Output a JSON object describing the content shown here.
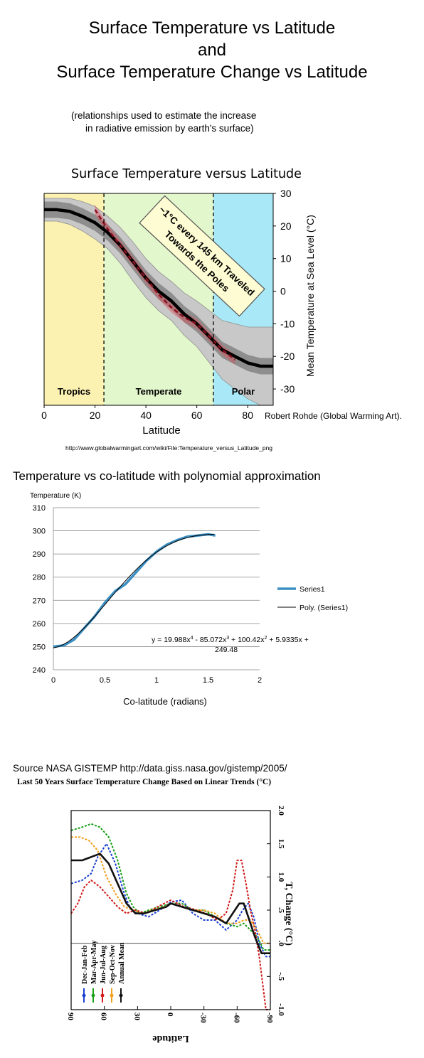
{
  "header": {
    "title_line1": "Surface Temperature vs Latitude",
    "title_line2": "and",
    "title_line3": "Surface Temperature Change vs Latitude",
    "note_line1": "(relationships used to estimate the increase",
    "note_line2": "in radiative emission by earth's surface)"
  },
  "chart_data": [
    {
      "type": "line",
      "title": "Surface Temperature versus Latitude",
      "xlabel": "Latitude",
      "ylabel": "Mean Temperature at Sea Level (°C)",
      "xlim": [
        0,
        90
      ],
      "ylim": [
        -35,
        30
      ],
      "x_ticks": [
        "0",
        "20",
        "40",
        "60",
        "80"
      ],
      "y_ticks": [
        "30",
        "20",
        "10",
        "0",
        "-10",
        "-20",
        "-30"
      ],
      "zones": [
        {
          "label": "Tropics",
          "from": 0,
          "to": 23.5,
          "color": "#fbf1b0"
        },
        {
          "label": "Temperate",
          "from": 23.5,
          "to": 66.5,
          "color": "#e3f7cc"
        },
        {
          "label": "Polar",
          "from": 66.5,
          "to": 90,
          "color": "#a9e8f7"
        }
      ],
      "annotation": {
        "line1": "~1°C every 145 km Traveled",
        "line2": "Towards the Poles"
      },
      "credit": "Robert Rohde (Global Warming Art).",
      "url": "http://www.globalwarmingart.com/wiki/File:Temperature_versus_Latitude_png",
      "series": [
        {
          "values_x": [
            0,
            5,
            10,
            15,
            20,
            25,
            30,
            35,
            40,
            45,
            50,
            55,
            60,
            65,
            70,
            75,
            80,
            85,
            90
          ],
          "values_y": [
            25,
            25,
            24.5,
            23,
            21,
            18,
            14,
            9,
            4,
            0,
            -3,
            -7,
            -10,
            -14,
            -18,
            -20,
            -22,
            -23,
            -23
          ]
        },
        {
          "values_x": [
            20,
            25,
            30,
            35,
            40,
            45,
            50,
            55,
            60,
            65,
            70,
            75
          ],
          "values_y": [
            25,
            19,
            14,
            9,
            4,
            -1,
            -5,
            -8,
            -10,
            -14,
            -18,
            -21
          ]
        }
      ],
      "band_inner": 2.5,
      "band_outer": [
        3.5,
        3.5,
        4,
        4.5,
        5,
        5,
        5.5,
        6,
        6,
        6,
        6,
        6.5,
        7,
        8,
        9,
        10,
        11,
        12,
        12
      ]
    },
    {
      "type": "line",
      "title": "Temperature vs co-latitude with polynomial approximation",
      "ylabel": "Temperature (K)",
      "xlabel": "Co-latitude (radians)",
      "xlim": [
        0,
        2
      ],
      "ylim": [
        240,
        310
      ],
      "x_ticks": [
        "0",
        "0.5",
        "1",
        "1.5",
        "2"
      ],
      "y_ticks": [
        "310",
        "300",
        "290",
        "280",
        "270",
        "260",
        "250",
        "240"
      ],
      "equation_line1": "y = 19.988x",
      "equation_line2": "249.48",
      "equation_sup1": "4",
      "equation_part2": " - 85.072x",
      "equation_sup2": "3",
      "equation_part3": " + 100.42x",
      "equation_sup3": "2",
      "equation_part4": " + 5.9335x +",
      "series": [
        {
          "name": "Series1",
          "x": [
            0,
            0.1,
            0.2,
            0.3,
            0.4,
            0.5,
            0.6,
            0.7,
            0.8,
            0.9,
            1.0,
            1.1,
            1.2,
            1.3,
            1.4,
            1.5,
            1.57
          ],
          "y": [
            250,
            250.5,
            253,
            258,
            263,
            269,
            274,
            277,
            282,
            287,
            291,
            294,
            296,
            297.5,
            298,
            298.5,
            298
          ]
        },
        {
          "name": "Poly. (Series1)"
        }
      ]
    },
    {
      "type": "line",
      "source": "Source NASA GISTEMP    http://data.giss.nasa.gov/gistemp/2005/",
      "title": "Last 50 Years Surface Temperature Change Based on Linear Trends (°C)",
      "xlabel": "Latitude",
      "ylabel": "T, Change (°C)",
      "xlim": [
        90,
        -90
      ],
      "ylim": [
        -1.0,
        2.0
      ],
      "x_ticks": [
        "90",
        "60",
        "30",
        "0",
        "-30",
        "-60",
        "-90"
      ],
      "y_ticks": [
        "2.0",
        "1.5",
        "1.0",
        ".5",
        ".0",
        "-.5",
        "-1.0"
      ],
      "series": [
        {
          "name": "Dec-Jan-Feb",
          "color": "#1a3fd0",
          "x": [
            90,
            80,
            72,
            66,
            58,
            50,
            42,
            36,
            30,
            20,
            10,
            0,
            -10,
            -20,
            -30,
            -40,
            -50,
            -60,
            -65,
            -70,
            -75,
            -80,
            -86,
            -90
          ],
          "y": [
            0.9,
            0.95,
            1.05,
            1.3,
            1.5,
            1.2,
            0.75,
            0.5,
            0.45,
            0.4,
            0.5,
            0.62,
            0.65,
            0.45,
            0.35,
            0.35,
            0.2,
            0.35,
            0.5,
            0.6,
            0.4,
            0.0,
            -0.2,
            -0.2
          ]
        },
        {
          "name": "Mar-Apr-May",
          "color": "#18a018",
          "x": [
            90,
            80,
            72,
            64,
            56,
            48,
            40,
            34,
            28,
            20,
            10,
            0,
            -10,
            -20,
            -30,
            -40,
            -50,
            -60,
            -66,
            -72,
            -78,
            -84,
            -90
          ],
          "y": [
            1.7,
            1.75,
            1.8,
            1.75,
            1.6,
            1.25,
            0.75,
            0.55,
            0.45,
            0.5,
            0.55,
            0.6,
            0.6,
            0.5,
            0.5,
            0.4,
            0.3,
            0.25,
            0.3,
            0.2,
            0.1,
            -0.1,
            -0.1
          ]
        },
        {
          "name": "Jun-Jul-Aug",
          "color": "#d11a1a",
          "x": [
            90,
            84,
            78,
            72,
            64,
            56,
            48,
            40,
            32,
            22,
            12,
            0,
            -12,
            -24,
            -32,
            -42,
            -50,
            -56,
            -60,
            -64,
            -68,
            -72,
            -76,
            -80,
            -86,
            -90
          ],
          "y": [
            0.45,
            0.6,
            0.85,
            0.95,
            0.85,
            0.7,
            0.55,
            0.45,
            0.5,
            0.45,
            0.55,
            0.65,
            0.55,
            0.5,
            0.45,
            0.35,
            0.45,
            0.8,
            1.25,
            1.25,
            0.9,
            0.5,
            0.2,
            -0.2,
            -1.0,
            -1.0
          ]
        },
        {
          "name": "Sep-Oct-Nov",
          "color": "#f0a020",
          "x": [
            90,
            82,
            74,
            66,
            58,
            50,
            42,
            34,
            26,
            16,
            6,
            0,
            -10,
            -20,
            -30,
            -40,
            -50,
            -60,
            -66,
            -72,
            -78,
            -84,
            -90
          ],
          "y": [
            1.6,
            1.6,
            1.55,
            1.4,
            1.0,
            0.75,
            0.55,
            0.5,
            0.45,
            0.5,
            0.55,
            0.6,
            0.55,
            0.5,
            0.5,
            0.45,
            0.3,
            0.3,
            0.35,
            0.35,
            0.2,
            0.0,
            0.0
          ]
        },
        {
          "name": "Annual Mean",
          "color": "#111111",
          "x": [
            90,
            80,
            72,
            64,
            56,
            48,
            40,
            32,
            24,
            14,
            4,
            0,
            -10,
            -20,
            -30,
            -40,
            -50,
            -58,
            -62,
            -66,
            -70,
            -76,
            -82,
            -88,
            -90
          ],
          "y": [
            1.25,
            1.25,
            1.3,
            1.35,
            1.2,
            0.9,
            0.6,
            0.45,
            0.45,
            0.5,
            0.55,
            0.6,
            0.55,
            0.5,
            0.45,
            0.4,
            0.3,
            0.5,
            0.6,
            0.6,
            0.4,
            0.1,
            -0.15,
            -0.15,
            -0.15
          ]
        }
      ]
    }
  ]
}
